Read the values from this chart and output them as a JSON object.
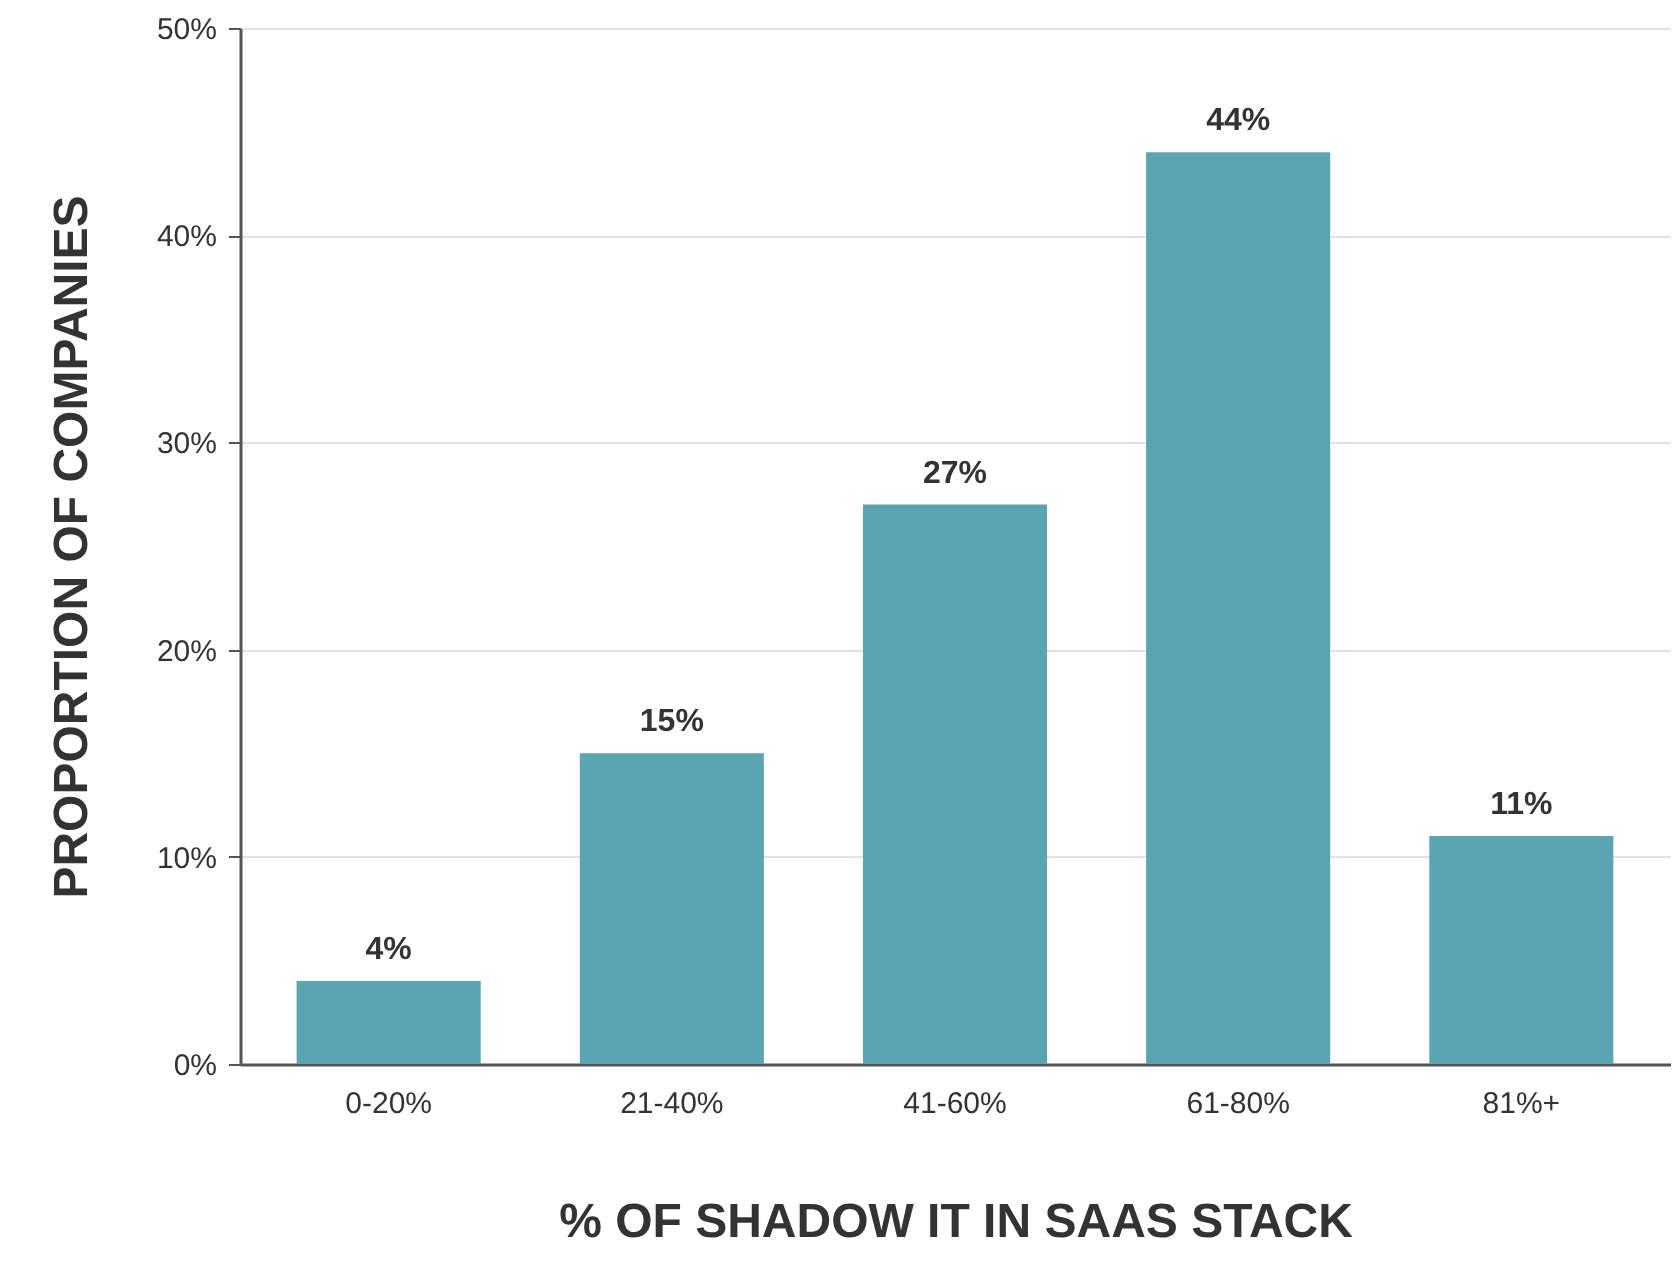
{
  "chart_data": {
    "type": "bar",
    "xlabel": "% OF SHADOW IT IN SAAS STACK",
    "ylabel": "PROPORTION OF COMPANIES",
    "categories": [
      "0-20%",
      "21-40%",
      "41-60%",
      "61-80%",
      "81%+"
    ],
    "values": [
      4,
      15,
      27,
      44,
      11
    ],
    "value_labels": [
      "4%",
      "15%",
      "27%",
      "44%",
      "11%"
    ],
    "color": "#5ba5b3",
    "ylim": [
      0,
      50
    ],
    "yticks": [
      {
        "value": 0,
        "label": "0%"
      },
      {
        "value": 10,
        "label": "10%"
      },
      {
        "value": 20,
        "label": "20%"
      },
      {
        "value": 30,
        "label": "30%"
      },
      {
        "value": 40,
        "label": "40%"
      },
      {
        "value": 50,
        "label": "50%"
      }
    ],
    "grid": "y"
  }
}
